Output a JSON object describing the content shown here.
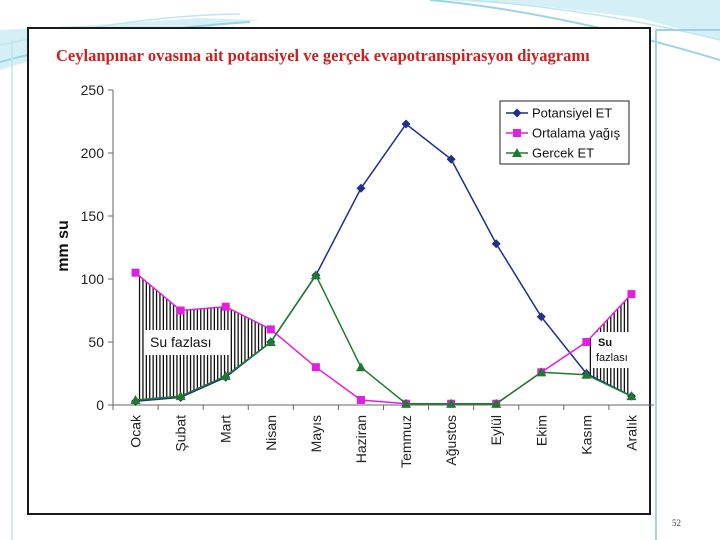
{
  "page": {
    "number": "52"
  },
  "theme": {
    "potential_color": "#1f2f8c",
    "rain_color": "#e11fe1",
    "actual_color": "#1f7a2e",
    "title_color": "#cc1f1f"
  },
  "chart_data": {
    "type": "line",
    "title": "Ceylanpınar ovasına ait potansiyel ve gerçek evapotranspirasyon diyagramı",
    "xlabel": "",
    "ylabel": "mm su",
    "categories": [
      "Ocak",
      "Şubat",
      "Mart",
      "Nisan",
      "Mayıs",
      "Haziran",
      "Temmuz",
      "Ağustos",
      "Eylül",
      "Ekim",
      "Kasım",
      "Aralık"
    ],
    "ylim": [
      0,
      250
    ],
    "yticks": [
      0,
      50,
      100,
      150,
      200,
      250
    ],
    "legend_position": "top-right",
    "series": [
      {
        "name": "Potansiyel ET",
        "marker": "diamond",
        "values": [
          3,
          6,
          22,
          50,
          103,
          172,
          223,
          195,
          128,
          70,
          25,
          7
        ]
      },
      {
        "name": "Ortalama yağış",
        "marker": "square",
        "values": [
          105,
          75,
          78,
          60,
          30,
          4,
          1,
          1,
          1,
          26,
          50,
          88
        ]
      },
      {
        "name": "Gercek ET",
        "marker": "triangle",
        "values": [
          4,
          7,
          23,
          50,
          103,
          30,
          1,
          1,
          1,
          26,
          24,
          7
        ]
      }
    ],
    "annotations": [
      "Su fazlası",
      "Su",
      "fazlası"
    ]
  }
}
